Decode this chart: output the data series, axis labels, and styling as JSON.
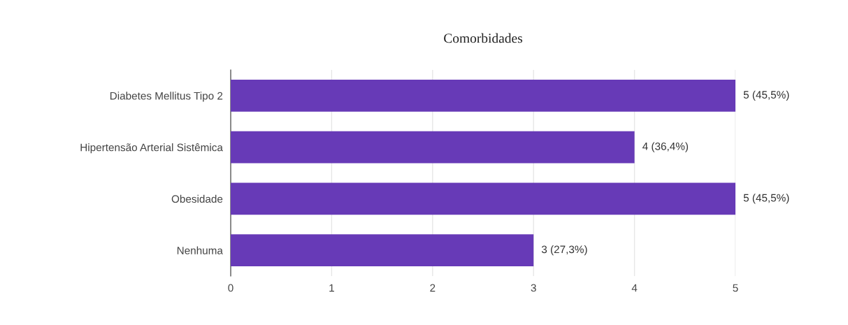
{
  "chart_data": {
    "type": "bar",
    "title": "Comorbidades",
    "orientation": "horizontal",
    "categories": [
      "Diabetes Mellitus Tipo 2",
      "Hipertensão Arterial Sistêmica",
      "Obesidade",
      "Nenhuma"
    ],
    "values": [
      5,
      4,
      5,
      3
    ],
    "value_labels": [
      "5 (45,5%)",
      "4 (36,4%)",
      "5 (45,5%)",
      "3 (27,3%)"
    ],
    "color": "#673ab7",
    "xlim": [
      0,
      5
    ],
    "xticks": [
      0,
      1,
      2,
      3,
      4,
      5
    ],
    "grid": "x"
  }
}
